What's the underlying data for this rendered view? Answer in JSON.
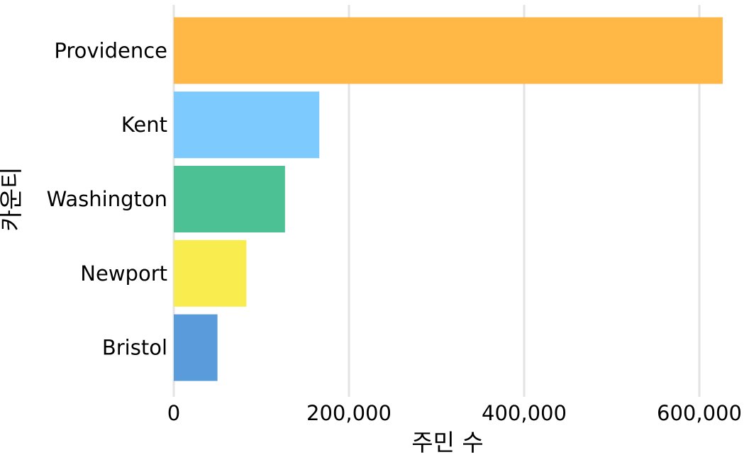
{
  "chart_data": {
    "type": "bar",
    "orientation": "horizontal",
    "xlabel": "주민 수",
    "ylabel": "카운티",
    "xlim": [
      0,
      628000
    ],
    "xticks": [
      0,
      200000,
      400000,
      600000
    ],
    "xtick_labels": [
      "0",
      "200,000",
      "400,000",
      "600,000"
    ],
    "grid": true,
    "legend": "none",
    "categories": [
      "Providence",
      "Kent",
      "Washington",
      "Newport",
      "Bristol"
    ],
    "values": [
      626667,
      166158,
      126979,
      82888,
      49875
    ],
    "colors": [
      "#ffb746",
      "#7dcaff",
      "#4cc194",
      "#f9ec4f",
      "#5a9bdb"
    ]
  }
}
